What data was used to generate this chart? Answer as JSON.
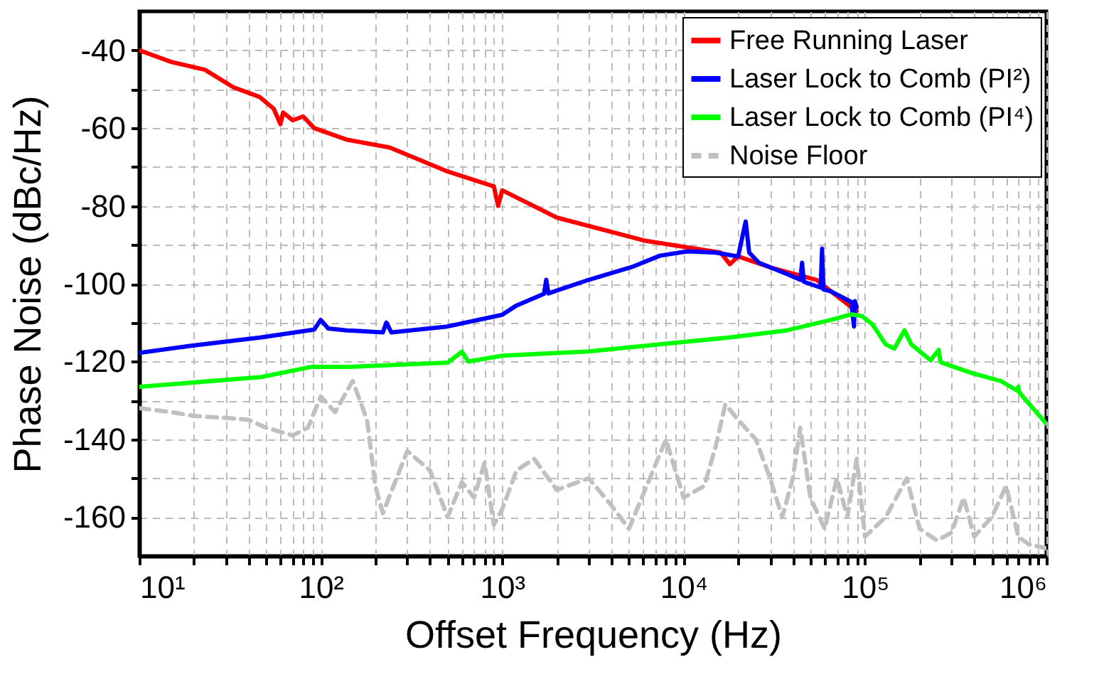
{
  "chart_data": {
    "type": "line",
    "xlabel": "Offset Frequency (Hz)",
    "ylabel": "Phase Noise (dBc/Hz)",
    "log": "x",
    "grid": true,
    "legend": "top right",
    "marker": "none",
    "xlim": [
      10,
      1000000
    ],
    "ylim": [
      -170,
      -30
    ],
    "xticks": [
      {
        "value": 10,
        "label": "10¹"
      },
      {
        "value": 20,
        "label": null
      },
      {
        "value": 30,
        "label": null
      },
      {
        "value": 40,
        "label": null
      },
      {
        "value": 50,
        "label": null
      },
      {
        "value": 60,
        "label": null
      },
      {
        "value": 70,
        "label": null
      },
      {
        "value": 80,
        "label": null
      },
      {
        "value": 90,
        "label": null
      },
      {
        "value": 100,
        "label": "10²"
      },
      {
        "value": 200,
        "label": null
      },
      {
        "value": 300,
        "label": null
      },
      {
        "value": 400,
        "label": null
      },
      {
        "value": 500,
        "label": null
      },
      {
        "value": 600,
        "label": null
      },
      {
        "value": 700,
        "label": null
      },
      {
        "value": 800,
        "label": null
      },
      {
        "value": 900,
        "label": null
      },
      {
        "value": 1000,
        "label": "10³"
      },
      {
        "value": 2000,
        "label": null
      },
      {
        "value": 3000,
        "label": null
      },
      {
        "value": 4000,
        "label": null
      },
      {
        "value": 5000,
        "label": null
      },
      {
        "value": 6000,
        "label": null
      },
      {
        "value": 7000,
        "label": null
      },
      {
        "value": 8000,
        "label": null
      },
      {
        "value": 9000,
        "label": null
      },
      {
        "value": 10000,
        "label": "10⁴"
      },
      {
        "value": 20000,
        "label": null
      },
      {
        "value": 30000,
        "label": null
      },
      {
        "value": 40000,
        "label": null
      },
      {
        "value": 50000,
        "label": null
      },
      {
        "value": 60000,
        "label": null
      },
      {
        "value": 70000,
        "label": null
      },
      {
        "value": 80000,
        "label": null
      },
      {
        "value": 90000,
        "label": null
      },
      {
        "value": 100000,
        "label": "10⁵"
      },
      {
        "value": 200000,
        "label": null
      },
      {
        "value": 300000,
        "label": null
      },
      {
        "value": 400000,
        "label": null
      },
      {
        "value": 500000,
        "label": null
      },
      {
        "value": 600000,
        "label": null
      },
      {
        "value": 700000,
        "label": null
      },
      {
        "value": 800000,
        "label": null
      },
      {
        "value": 900000,
        "label": null
      },
      {
        "value": 1000000,
        "label": "10⁶"
      }
    ],
    "yticks": [
      -160,
      {
        "value": -150,
        "label": null
      },
      -140,
      {
        "value": -130,
        "label": null
      },
      -120,
      {
        "value": -110,
        "label": null
      },
      -100,
      {
        "value": -90,
        "label": null
      },
      -80,
      {
        "value": -70,
        "label": null
      },
      -60,
      {
        "value": -50,
        "label": null
      },
      -40
    ],
    "series": [
      {
        "name": "Free Running Laser",
        "color": "#ff0000",
        "line_style": "solid",
        "x": [
          10,
          15,
          23,
          33,
          46,
          55,
          60,
          62,
          70,
          80,
          92,
          140,
          240,
          490,
          900,
          950,
          1000,
          2000,
          6200,
          16000,
          18000,
          20000,
          31000,
          54000,
          65000,
          84000,
          90000
        ],
        "values": [
          -40,
          -43,
          -45,
          -49.5,
          -52,
          -55,
          -59,
          -56,
          -58,
          -57,
          -60,
          -63,
          -65,
          -71,
          -75,
          -80,
          -76,
          -83,
          -89,
          -92,
          -95,
          -93,
          -96,
          -99,
          -102,
          -106,
          -107
        ]
      },
      {
        "name": "Laser Lock to Comb (PI²)",
        "color": "#0000ff",
        "line_style": "solid",
        "x": [
          10,
          19,
          47,
          92,
          100,
          110,
          140,
          220,
          230,
          245,
          500,
          1000,
          1200,
          1700,
          1750,
          1800,
          3000,
          5200,
          7400,
          10500,
          15000,
          20000,
          22000,
          23000,
          26000,
          37000,
          44000,
          45000,
          46000,
          57000,
          58000,
          59000,
          65000,
          84000,
          87000,
          88000,
          90000
        ],
        "values": [
          -117.8,
          -116,
          -113.8,
          -111.8,
          -109.3,
          -111.5,
          -112,
          -112.5,
          -110,
          -112.5,
          -111,
          -108,
          -105.6,
          -102.6,
          -99,
          -102.5,
          -99,
          -95.7,
          -92.8,
          -91.7,
          -92,
          -93,
          -84,
          -92,
          -94.6,
          -97.5,
          -99,
          -94.6,
          -99.5,
          -101,
          -91,
          -101.5,
          -102,
          -104.7,
          -111,
          -104.5,
          -106
        ]
      },
      {
        "name": "Laser Lock to Comb (PI⁴)",
        "color": "#00ff00",
        "line_style": "solid",
        "x": [
          10,
          47,
          88,
          140,
          500,
          600,
          650,
          1000,
          3000,
          7400,
          18000,
          37000,
          65000,
          84000,
          96000,
          110000,
          130000,
          145000,
          165000,
          180000,
          230000,
          255000,
          260000,
          265000,
          390000,
          560000,
          690000,
          700000,
          710000,
          1000000
        ],
        "values": [
          -126.5,
          -124,
          -121.4,
          -121.4,
          -120.3,
          -117.5,
          -120,
          -118.5,
          -117.4,
          -115.6,
          -113.8,
          -112,
          -109.3,
          -107.9,
          -108.3,
          -110.5,
          -115.6,
          -116.7,
          -112,
          -115.6,
          -119.7,
          -117,
          -120,
          -120.3,
          -123,
          -125,
          -127.5,
          -126.5,
          -128,
          -136
        ]
      },
      {
        "name": "Noise Floor",
        "color": "#c0c0c0",
        "line_style": "dashed",
        "x": [
          10,
          15,
          20,
          30,
          40,
          50,
          70,
          85,
          100,
          120,
          150,
          180,
          200,
          220,
          300,
          400,
          500,
          600,
          700,
          800,
          900,
          1000,
          1200,
          1500,
          2000,
          3000,
          4000,
          5000,
          8000,
          10000,
          13000,
          15000,
          17000,
          20000,
          25000,
          30000,
          35000,
          40000,
          44000,
          50000,
          60000,
          70000,
          80000,
          90000,
          100000,
          130000,
          170000,
          200000,
          250000,
          300000,
          350000,
          400000,
          500000,
          600000,
          700000,
          800000,
          1000000
        ],
        "values": [
          -132,
          -133,
          -134,
          -134.5,
          -135,
          -137,
          -139,
          -137,
          -129,
          -133,
          -125,
          -135,
          -152,
          -159,
          -143,
          -148,
          -160,
          -151,
          -155,
          -146,
          -162,
          -158,
          -148,
          -145,
          -153,
          -150,
          -157,
          -163,
          -140,
          -155,
          -152,
          -142,
          -131,
          -135,
          -140,
          -150,
          -160,
          -150,
          -137,
          -155,
          -163,
          -150,
          -160,
          -145,
          -165,
          -160,
          -150,
          -163,
          -166,
          -164,
          -155,
          -165,
          -160,
          -152,
          -165,
          -167,
          -168
        ]
      }
    ]
  }
}
